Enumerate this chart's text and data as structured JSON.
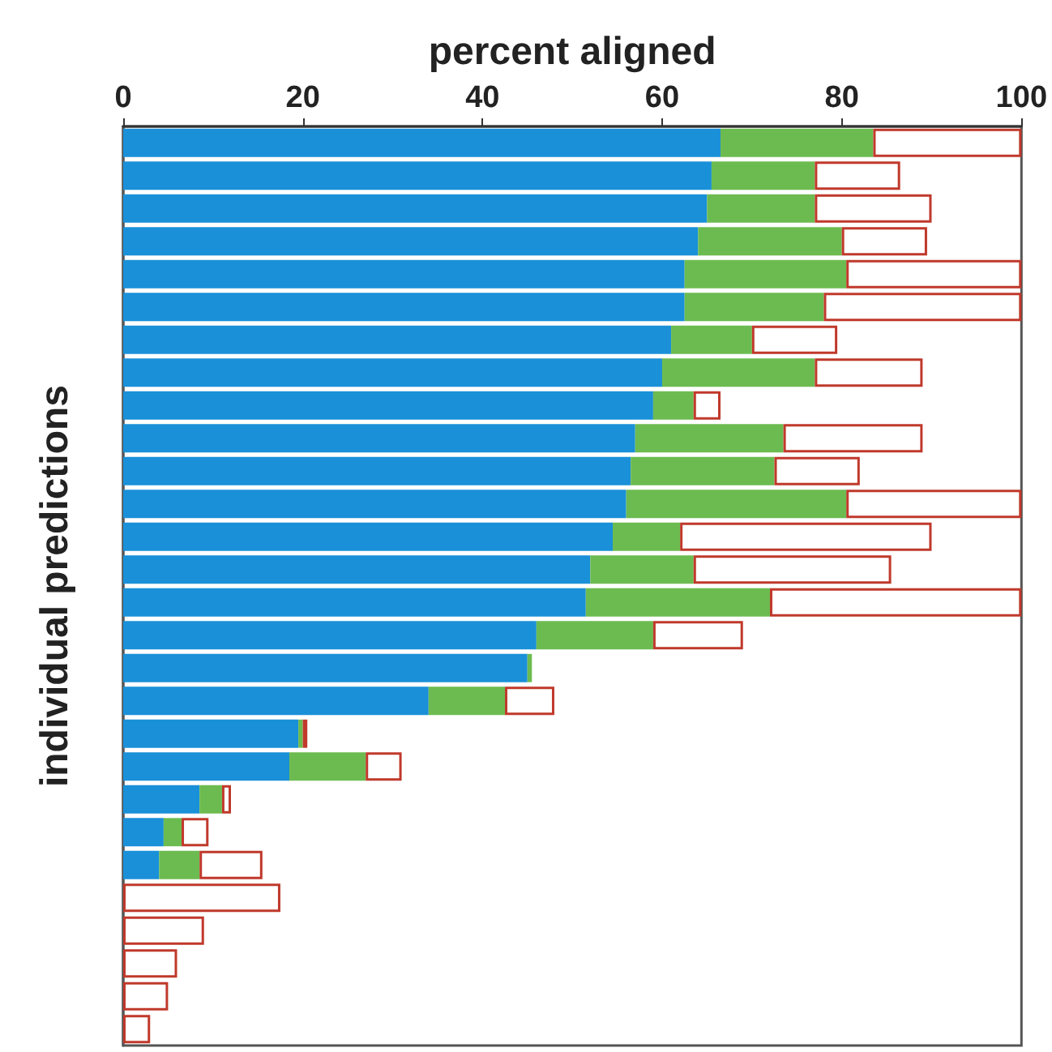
{
  "chart_data": {
    "type": "bar",
    "orientation": "horizontal",
    "stacked": true,
    "xlabel": "percent aligned",
    "ylabel": "individual predictions",
    "categories": [
      null,
      null,
      null,
      null,
      null,
      null,
      null,
      null,
      null,
      null,
      null,
      null,
      null,
      null,
      null,
      null,
      null,
      null,
      null,
      null,
      null,
      null,
      null,
      null,
      null,
      null,
      null,
      null
    ],
    "series": [
      {
        "color": "#1a90d8",
        "values": [
          66.5,
          65.5,
          65,
          64,
          62.5,
          62.5,
          61,
          60,
          59,
          57,
          56.5,
          56,
          54.5,
          52,
          51.5,
          46,
          45,
          34,
          19.5,
          18.5,
          8.5,
          4.5,
          4,
          0,
          0,
          0,
          0,
          0
        ]
      },
      {
        "color": "#6cbb50",
        "values": [
          17,
          11.5,
          12,
          16,
          18,
          15.5,
          9,
          17,
          4.5,
          16.5,
          16,
          24.5,
          7.5,
          11.5,
          20.5,
          13,
          0.5,
          8.5,
          0.5,
          8.5,
          2.5,
          2,
          4.5,
          0,
          0,
          0,
          0,
          0
        ]
      },
      {
        "color": "#ffffff",
        "values": [
          16.5,
          9.5,
          13,
          9.5,
          19.5,
          22,
          9.5,
          12,
          3,
          15.5,
          9.5,
          19.5,
          28,
          22,
          28,
          10,
          0,
          5.5,
          0.5,
          4,
          1,
          3,
          7,
          17.5,
          9,
          6,
          5,
          3
        ]
      }
    ],
    "xlim": [
      0,
      100
    ],
    "xticks": [
      0,
      20,
      40,
      60,
      80,
      100
    ],
    "tick_labels": "x",
    "grid": false
  }
}
